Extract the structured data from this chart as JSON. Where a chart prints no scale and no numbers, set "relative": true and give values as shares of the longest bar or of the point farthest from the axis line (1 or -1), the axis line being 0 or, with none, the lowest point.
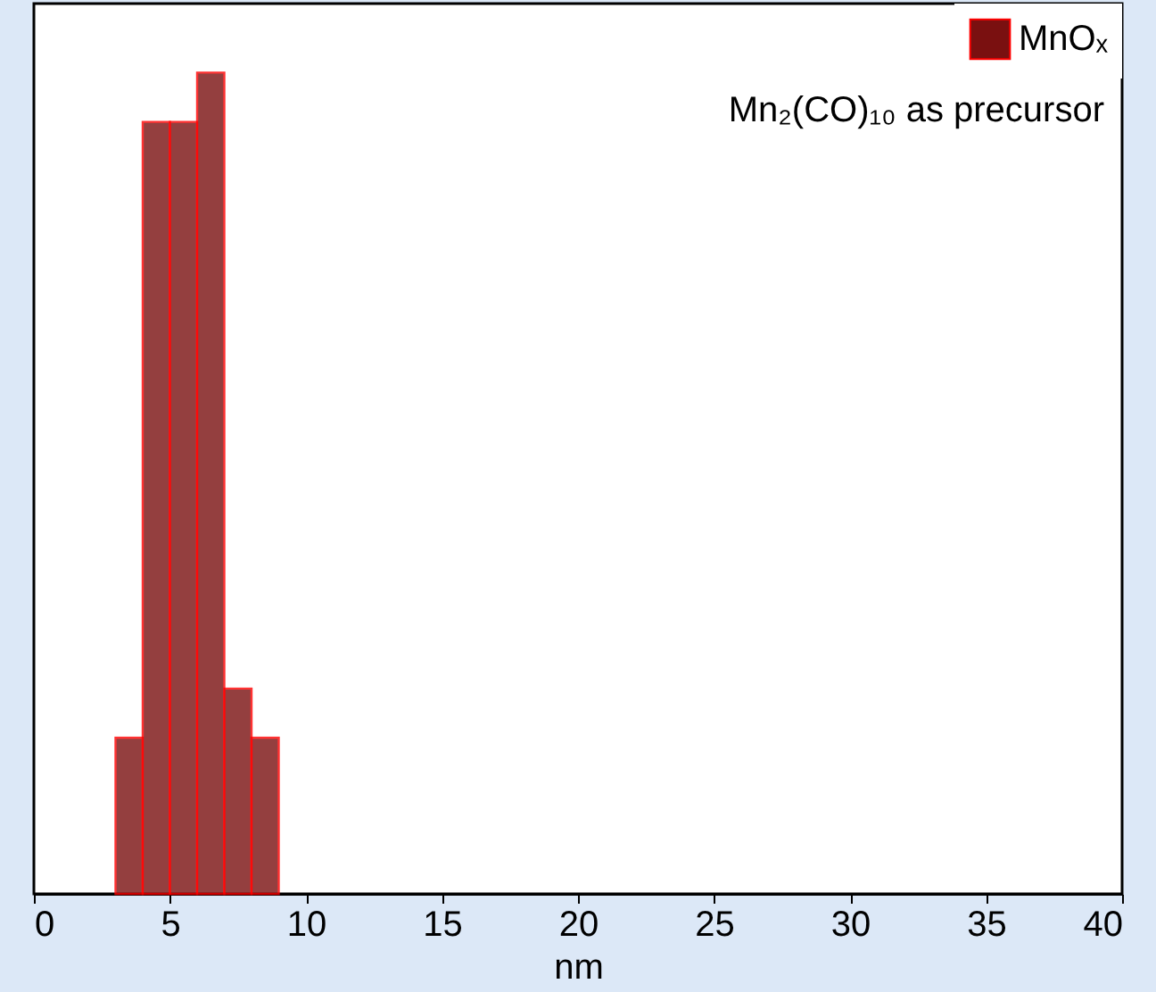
{
  "chart_data": {
    "type": "bar",
    "relative": true,
    "x": [
      3.5,
      4.5,
      5.5,
      6.5,
      7.5,
      8.5
    ],
    "series": [
      {
        "name": "MnOₓ",
        "color": "#7a1010",
        "values": [
          0.19,
          0.94,
          0.94,
          1,
          0.25,
          0.19
        ]
      }
    ],
    "annotations": [
      "Mn₂(CO)₁₀ as precursor"
    ],
    "xlabel": "nm",
    "xlim": [
      0,
      40
    ],
    "xticks": [
      0,
      5,
      10,
      15,
      20,
      25,
      30,
      35,
      40
    ],
    "tick_labels": "x",
    "grid": false,
    "legend": "top right"
  }
}
